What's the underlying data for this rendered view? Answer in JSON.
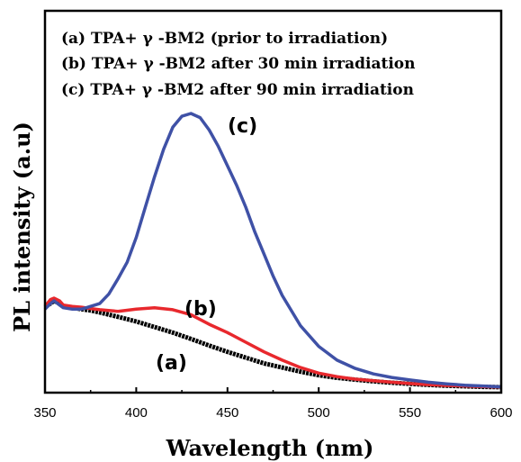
{
  "chart_data": {
    "type": "line",
    "xlabel": "Wavelength (nm)",
    "ylabel": "PL intensity (a.u)",
    "xlim": [
      350,
      600
    ],
    "ylim": [
      0,
      1
    ],
    "x_ticks": [
      350,
      400,
      450,
      500,
      550,
      600
    ],
    "y_ticks_shown": false,
    "grid": false,
    "legend_position": "top-left",
    "legend": [
      "(a) TPA+ γ -BM2 (prior to irradiation)",
      "(b) TPA+ γ -BM2 after 30 min irradiation",
      "(c) TPA+ γ -BM2 after 90 min irradiation"
    ],
    "annotations": [
      "(a)",
      "(b)",
      "(c)"
    ],
    "series": [
      {
        "id": "a",
        "color": "#000000",
        "x": [
          350,
          353,
          355,
          358,
          360,
          365,
          370,
          375,
          380,
          390,
          400,
          410,
          420,
          430,
          440,
          450,
          460,
          470,
          480,
          490,
          500,
          510,
          520,
          530,
          540,
          550,
          560,
          570,
          580,
          590,
          600
        ],
        "y": [
          0.3,
          0.31,
          0.32,
          0.31,
          0.3,
          0.295,
          0.29,
          0.285,
          0.278,
          0.262,
          0.245,
          0.225,
          0.205,
          0.182,
          0.158,
          0.135,
          0.114,
          0.093,
          0.078,
          0.063,
          0.05,
          0.041,
          0.034,
          0.028,
          0.023,
          0.019,
          0.015,
          0.012,
          0.01,
          0.008,
          0.007
        ]
      },
      {
        "id": "b",
        "color": "#e8282d",
        "x": [
          350,
          353,
          355,
          358,
          360,
          365,
          370,
          375,
          380,
          390,
          400,
          410,
          420,
          430,
          440,
          450,
          460,
          470,
          480,
          490,
          500,
          510,
          520,
          530,
          540,
          550,
          560,
          570,
          580,
          590,
          600
        ],
        "y": [
          0.3,
          0.325,
          0.33,
          0.32,
          0.305,
          0.3,
          0.297,
          0.292,
          0.288,
          0.282,
          0.29,
          0.295,
          0.288,
          0.27,
          0.235,
          0.205,
          0.17,
          0.135,
          0.105,
          0.078,
          0.058,
          0.045,
          0.036,
          0.03,
          0.025,
          0.02,
          0.016,
          0.013,
          0.011,
          0.009,
          0.007
        ]
      },
      {
        "id": "c",
        "color": "#3f51a6",
        "x": [
          350,
          353,
          355,
          358,
          360,
          365,
          370,
          375,
          380,
          385,
          390,
          395,
          400,
          405,
          410,
          415,
          420,
          425,
          430,
          435,
          440,
          445,
          450,
          455,
          460,
          465,
          470,
          475,
          480,
          490,
          500,
          510,
          520,
          530,
          540,
          550,
          560,
          570,
          580,
          590,
          600
        ],
        "y": [
          0.29,
          0.31,
          0.32,
          0.305,
          0.295,
          0.29,
          0.29,
          0.3,
          0.31,
          0.345,
          0.4,
          0.46,
          0.55,
          0.66,
          0.77,
          0.87,
          0.95,
          0.99,
          1.0,
          0.985,
          0.94,
          0.88,
          0.81,
          0.74,
          0.66,
          0.57,
          0.49,
          0.41,
          0.34,
          0.23,
          0.155,
          0.105,
          0.075,
          0.055,
          0.042,
          0.033,
          0.025,
          0.019,
          0.014,
          0.011,
          0.008
        ]
      }
    ]
  }
}
